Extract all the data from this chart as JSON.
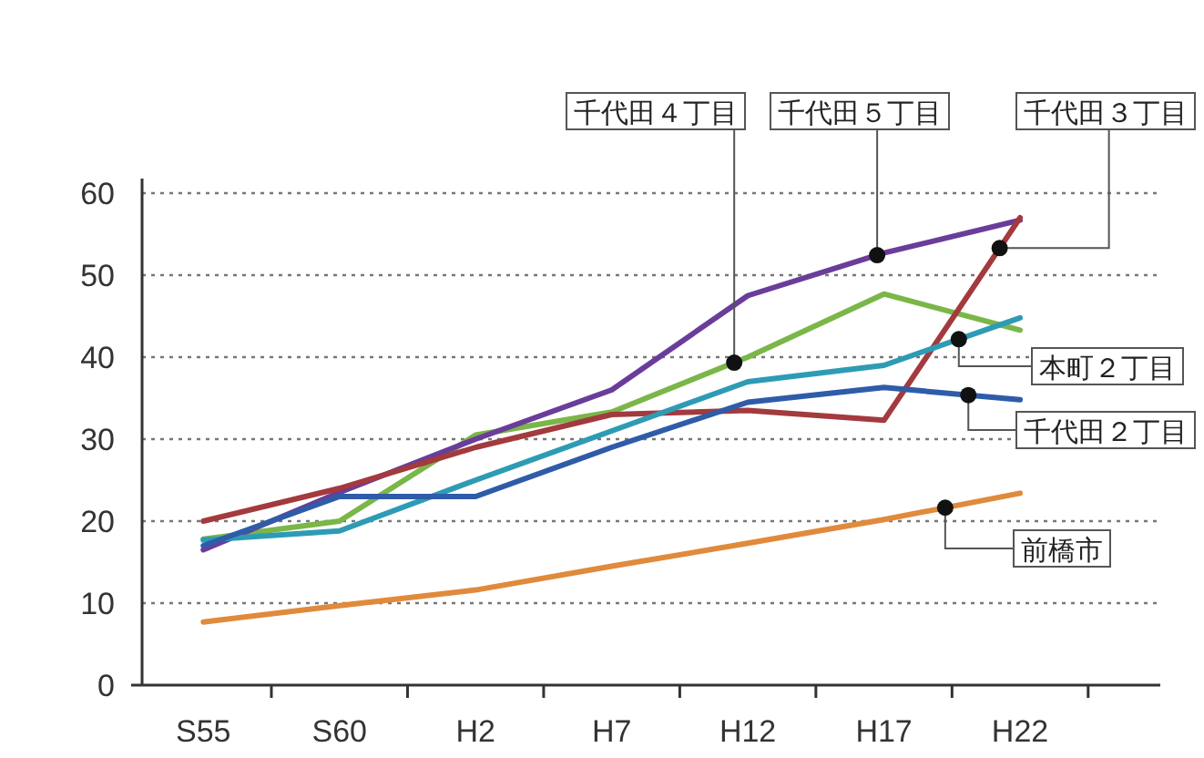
{
  "chart_data": {
    "type": "line",
    "categories": [
      "S55",
      "S60",
      "H2",
      "H7",
      "H12",
      "H17",
      "H22"
    ],
    "ylim": [
      0,
      60
    ],
    "yticks": [
      0,
      10,
      20,
      30,
      40,
      50,
      60
    ],
    "grid": "y",
    "line_style": "solid",
    "series": [
      {
        "name": "千代田４丁目",
        "color": "#7ab648",
        "values": [
          17.8,
          20,
          30.5,
          33.3,
          40,
          47.7,
          43.3
        ]
      },
      {
        "name": "千代田５丁目",
        "color": "#6a3d9a",
        "values": [
          16.5,
          23.5,
          30,
          36,
          47.5,
          52.7,
          56.7
        ]
      },
      {
        "name": "千代田３丁目",
        "color": "#a33a3e",
        "values": [
          20,
          24,
          29,
          33,
          33.5,
          32.3,
          57
        ]
      },
      {
        "name": "本町２丁目",
        "color": "#2e9bb5",
        "values": [
          17.7,
          18.8,
          25,
          31,
          37,
          39,
          44.8
        ]
      },
      {
        "name": "千代田２丁目",
        "color": "#2e5ca8",
        "values": [
          17,
          23,
          23,
          29,
          34.5,
          36.3,
          34.8
        ]
      },
      {
        "name": "前橋市",
        "color": "#e08a3c",
        "values": [
          7.7,
          9.7,
          11.6,
          14.5,
          17.3,
          20.2,
          23.4
        ]
      }
    ]
  }
}
